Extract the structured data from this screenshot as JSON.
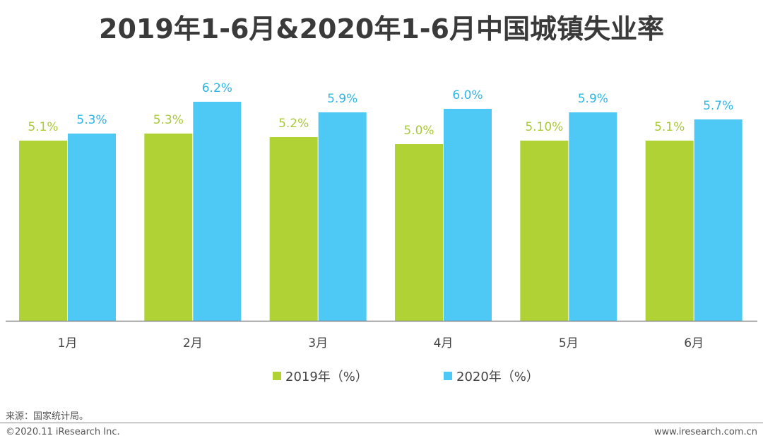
{
  "title": "2019年1-6月&2020年1-6月中国城镇失业率",
  "legend": {
    "s2019": "2019年（%）",
    "s2020": "2020年（%）"
  },
  "source": "来源：国家统计局。",
  "copyright": "©2020.11 iResearch Inc.",
  "website": "www.iresearch.com.cn",
  "colors": {
    "s2019": "#b0d234",
    "s2020": "#4ec9f5",
    "label2019": "#a8c93a",
    "label2020": "#2fb6e6"
  },
  "chart_data": {
    "type": "bar",
    "title": "2019年1-6月&2020年1-6月中国城镇失业率",
    "categories": [
      "1月",
      "2月",
      "3月",
      "4月",
      "5月",
      "6月"
    ],
    "series": [
      {
        "name": "2019年（%）",
        "values": [
          5.1,
          5.3,
          5.2,
          5.0,
          5.1,
          5.1
        ],
        "labels": [
          "5.1%",
          "5.3%",
          "5.2%",
          "5.0%",
          "5.10%",
          "5.1%"
        ]
      },
      {
        "name": "2020年（%）",
        "values": [
          5.3,
          6.2,
          5.9,
          6.0,
          5.9,
          5.7
        ],
        "labels": [
          "5.3%",
          "6.2%",
          "5.9%",
          "6.0%",
          "5.9%",
          "5.7%"
        ]
      }
    ],
    "legend_position": "bottom",
    "grid": false
  }
}
